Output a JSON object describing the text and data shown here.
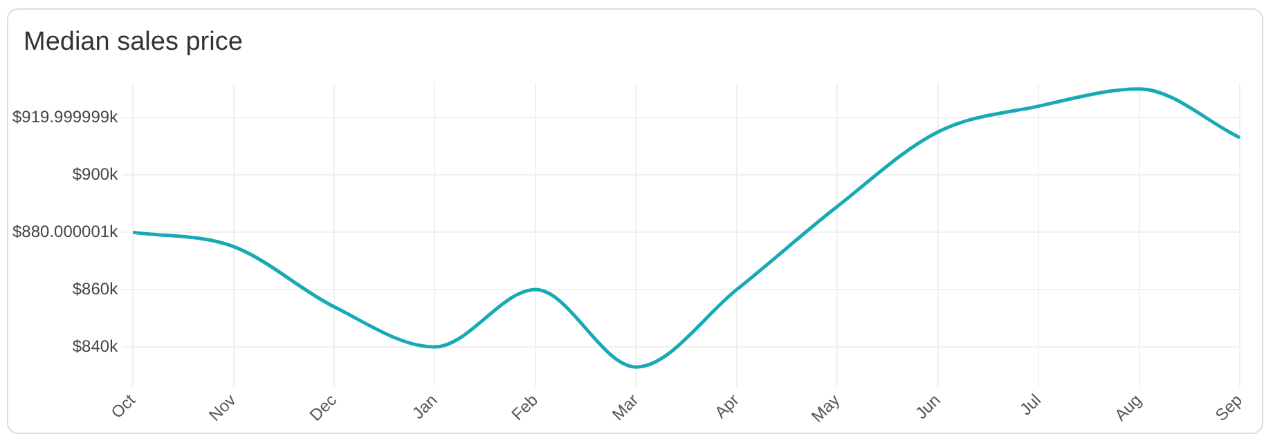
{
  "chart_data": {
    "type": "line",
    "title": "Median sales price",
    "categories": [
      "Oct",
      "Nov",
      "Dec",
      "Jan",
      "Feb",
      "Mar",
      "Apr",
      "May",
      "Jun",
      "Jul",
      "Aug",
      "Sep"
    ],
    "series": [
      {
        "color": "#17aab5",
        "values": [
          880,
          875,
          854,
          840,
          860,
          833,
          860,
          889,
          915,
          924,
          930,
          913
        ]
      }
    ],
    "ylim": [
      830,
      932
    ],
    "yticks": [
      {
        "value": 840,
        "label": "$840k"
      },
      {
        "value": 860,
        "label": "$860k"
      },
      {
        "value": 880.000001,
        "label": "$880.000001k"
      },
      {
        "value": 900,
        "label": "$900k"
      },
      {
        "value": 919.999999,
        "label": "$919.999999k"
      }
    ],
    "grid": true,
    "legend": false,
    "marker": "none",
    "line_style": "solid"
  }
}
